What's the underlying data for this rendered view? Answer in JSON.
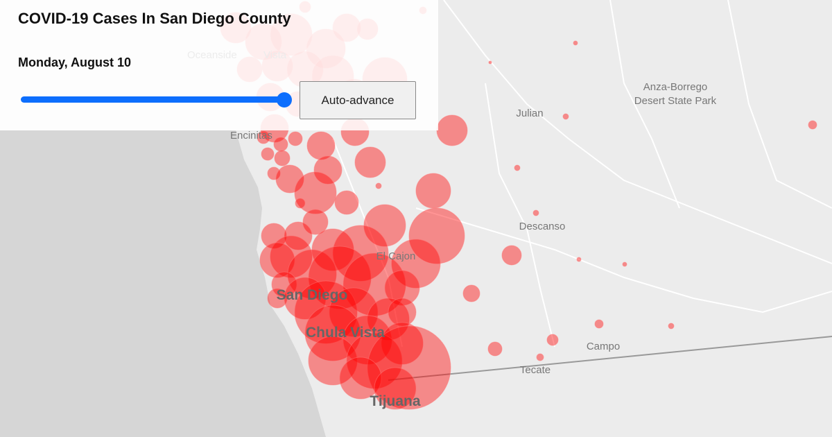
{
  "panel": {
    "title": "COVID-19 Cases In San Diego County",
    "date": "Monday, August 10",
    "button": "Auto-advance"
  },
  "map": {
    "labels": [
      "Oceanside",
      "Vista",
      "Encinitas",
      "Julian",
      "Anza-Borrego",
      "Desert State Park",
      "Descanso",
      "El Cajon",
      "San Diego",
      "Chula Vista",
      "Campo",
      "Tecate",
      "Tijuana"
    ]
  }
}
